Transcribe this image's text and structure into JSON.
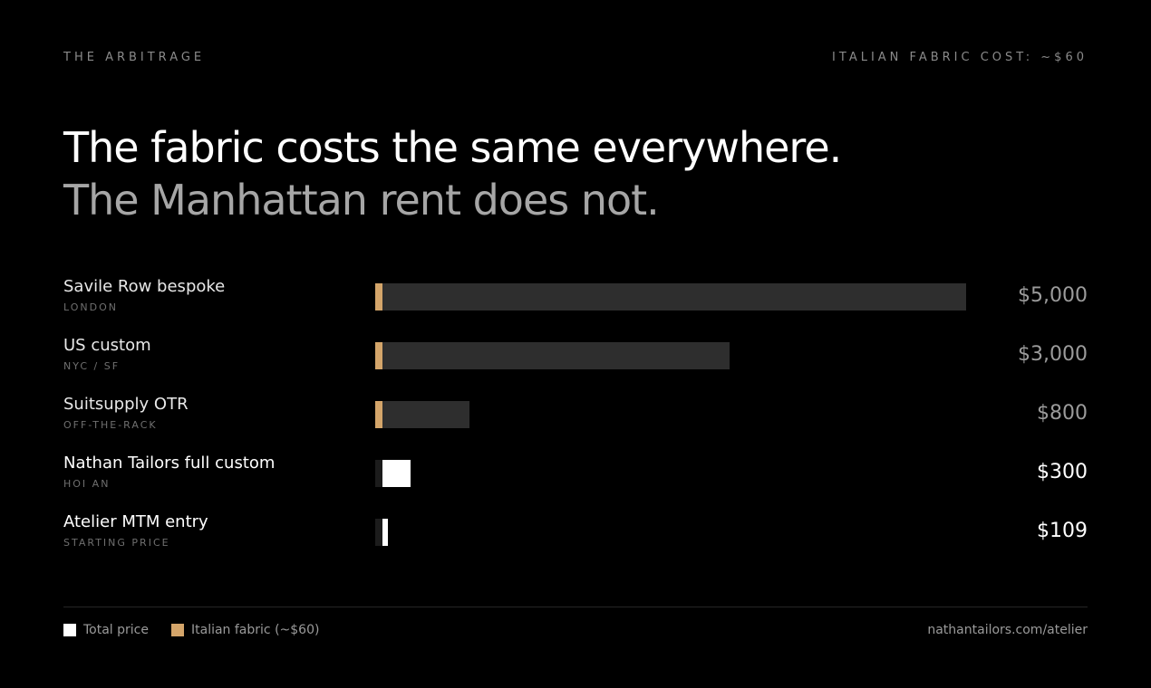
{
  "header": {
    "kicker_left": "THE ARBITRAGE",
    "kicker_right": "ITALIAN FABRIC COST: ~$60"
  },
  "headline": {
    "line1": "The fabric costs the same everywhere.",
    "line2": "The Manhattan rent does not."
  },
  "colors": {
    "background": "#000000",
    "bar_other": "#2e2e2e",
    "bar_highlight": "#ffffff",
    "fabric": "#d4a56a"
  },
  "chart_data": {
    "type": "bar",
    "orientation": "horizontal",
    "categories": [
      "Savile Row bespoke",
      "US custom",
      "Suitsupply OTR",
      "Nathan Tailors full custom",
      "Atelier MTM entry"
    ],
    "sublabels": [
      "LONDON",
      "NYC / SF",
      "OFF-THE-RACK",
      "HOI AN",
      "STARTING PRICE"
    ],
    "value_labels": [
      "$5,000",
      "$3,000",
      "$800",
      "$300",
      "$109"
    ],
    "series": [
      {
        "name": "Total price",
        "values": [
          5000,
          3000,
          800,
          300,
          109
        ]
      },
      {
        "name": "Italian fabric (~$60)",
        "values": [
          60,
          60,
          60,
          60,
          60
        ]
      }
    ],
    "highlighted": [
      false,
      false,
      false,
      true,
      true
    ],
    "xlim": [
      0,
      5000
    ],
    "grid": false,
    "legend_position": "bottom-left"
  },
  "legend": {
    "total_label": "Total price",
    "fabric_label": "Italian fabric (~$60)"
  },
  "footer": {
    "link": "nathantailors.com/atelier"
  }
}
